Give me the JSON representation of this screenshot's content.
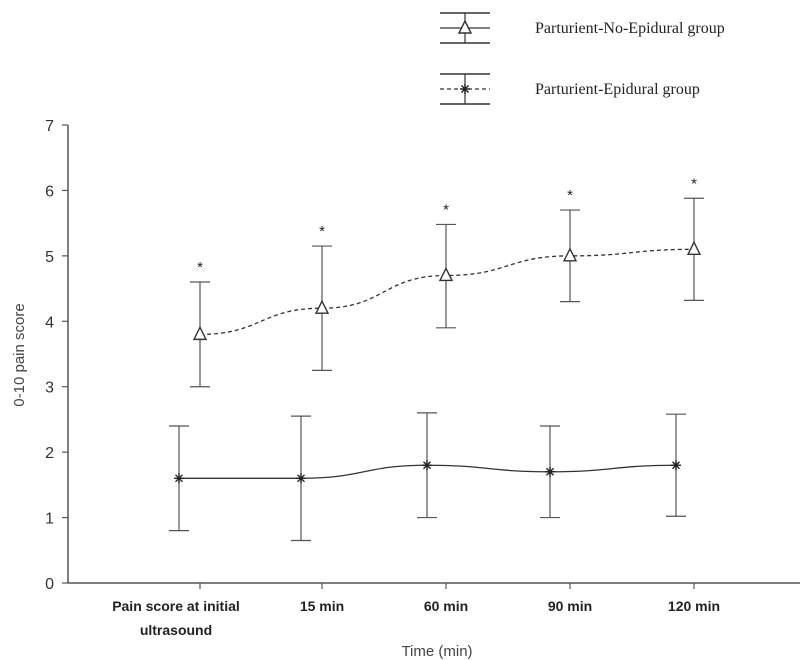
{
  "chart_data": {
    "type": "line",
    "categories": [
      "Pain score at initial ultrasound",
      "15 min",
      "60 min",
      "90 min",
      "120 min"
    ],
    "category_lines": [
      [
        "Pain score at initial",
        "ultrasound"
      ],
      [
        "15 min"
      ],
      [
        "60 min"
      ],
      [
        "90 min"
      ],
      [
        "120 min"
      ]
    ],
    "xlabel": "Time (min)",
    "ylabel": "0-10 pain score",
    "ylim": [
      0,
      7
    ],
    "yticks": [
      0,
      1,
      2,
      3,
      4,
      5,
      6,
      7
    ],
    "grid": false,
    "legend_position": "top-right",
    "series": [
      {
        "name": "Parturient-No-Epidural group",
        "marker": "triangle",
        "line_style": "dashed",
        "values": [
          3.8,
          4.2,
          4.7,
          5.0,
          5.1
        ],
        "error_low": [
          3.0,
          3.25,
          3.9,
          4.3,
          4.32
        ],
        "error_high": [
          4.6,
          5.15,
          5.48,
          5.7,
          5.88
        ],
        "annotations": [
          "*",
          "*",
          "*",
          "*",
          "*"
        ]
      },
      {
        "name": "Parturient-Epidural group",
        "marker": "asterisk",
        "line_style": "solid",
        "values": [
          1.6,
          1.6,
          1.8,
          1.7,
          1.8
        ],
        "error_low": [
          0.8,
          0.65,
          1.0,
          1.0,
          1.02
        ],
        "error_high": [
          2.4,
          2.55,
          2.6,
          2.4,
          2.58
        ]
      }
    ]
  }
}
